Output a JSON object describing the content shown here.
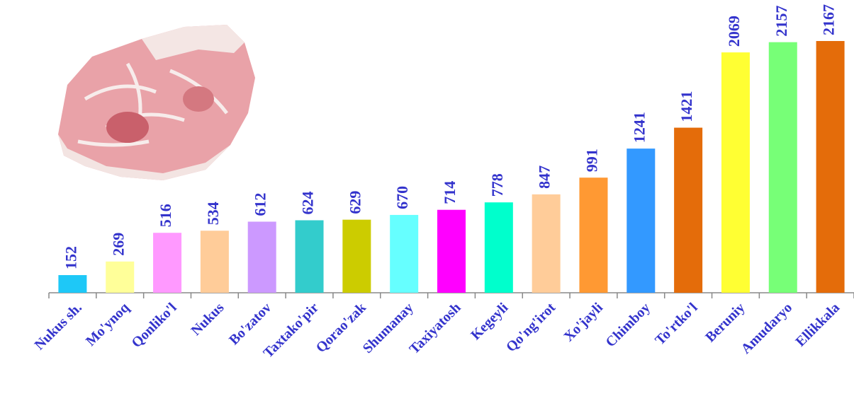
{
  "chart_data": {
    "type": "bar",
    "categories": [
      "Nukus sh.",
      "Mo'ynoq",
      "Qonliko'l",
      "Nukus",
      "Bo'zatov",
      "Taxtako'pir",
      "Qorao'zak",
      "Shumanay",
      "Taxiyatosh",
      "Kegeyli",
      "Qo'ng'irot",
      "Xo'jayli",
      "Chimboy",
      "To'rtko'l",
      "Beruniy",
      "Amudaryo",
      "Ellikkala"
    ],
    "values": [
      152,
      269,
      516,
      534,
      612,
      624,
      629,
      670,
      714,
      778,
      847,
      991,
      1241,
      1421,
      2069,
      2157,
      2167
    ],
    "colors": [
      "#1ec8f7",
      "#ffff99",
      "#ff99ff",
      "#ffcc99",
      "#cc99ff",
      "#33cccc",
      "#cccc00",
      "#66ffff",
      "#ff00ff",
      "#00ffcc",
      "#ffcc99",
      "#ff9933",
      "#3399ff",
      "#e46c0a",
      "#ffff33",
      "#77ff77",
      "#e46c0a"
    ]
  }
}
